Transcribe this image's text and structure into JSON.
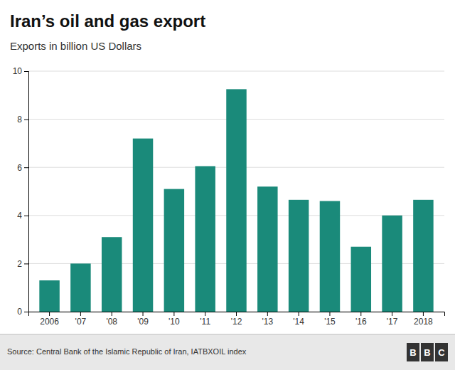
{
  "chart_data": {
    "type": "bar",
    "title": "Iran’s oil and gas export",
    "subtitle": "Exports in billion US Dollars",
    "categories": [
      "2006",
      "'07",
      "'08",
      "'09",
      "'10",
      "'11",
      "'12",
      "'13",
      "'14",
      "'15",
      "'16",
      "'17",
      "2018"
    ],
    "values": [
      1.3,
      2.0,
      3.1,
      7.2,
      5.1,
      6.05,
      9.25,
      5.2,
      4.65,
      4.6,
      2.7,
      4.0,
      4.65
    ],
    "color": "#1a8a7a",
    "ylim": [
      0,
      10
    ],
    "yticks": [
      0,
      2,
      4,
      6,
      8,
      10
    ],
    "grid": true,
    "source": "Source: Central Bank of the Islamic Republic of Iran, IATBXOIL index",
    "logo": "BBC"
  }
}
